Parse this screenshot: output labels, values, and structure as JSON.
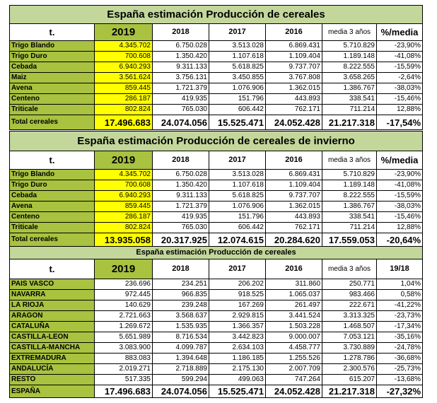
{
  "tables": [
    {
      "title": "España estimación Producción de cereales",
      "headers": [
        "t.",
        "2019",
        "2018",
        "2017",
        "2016",
        "media 3 años",
        "%/media"
      ],
      "rows": [
        [
          "Trigo Blando",
          "4.345.702",
          "6.750.028",
          "3.513.028",
          "6.869.431",
          "5.710.829",
          "-23,90%"
        ],
        [
          "Trigo Duro",
          "700.608",
          "1.350.420",
          "1.107.618",
          "1.109.404",
          "1.189.148",
          "-41,08%"
        ],
        [
          "Cebada",
          "6.940.293",
          "9.311.133",
          "5.618.825",
          "9.737.707",
          "8.222.555",
          "-15,59%"
        ],
        [
          "Maiz",
          "3.561.624",
          "3.756.131",
          "3.450.855",
          "3.767.808",
          "3.658.265",
          "-2,64%"
        ],
        [
          "Avena",
          "859.445",
          "1.721.379",
          "1.076.906",
          "1.362.015",
          "1.386.767",
          "-38,03%"
        ],
        [
          "Centeno",
          "286.187",
          "419.935",
          "151.796",
          "443.893",
          "338.541",
          "-15,46%"
        ],
        [
          "Triticale",
          "802.824",
          "765.030",
          "606.442",
          "762.171",
          "711.214",
          "12,88%"
        ]
      ],
      "total": [
        "Total cereales",
        "17.496.683",
        "24.074.056",
        "15.525.471",
        "24.052.428",
        "21.217.318",
        "-17,54%"
      ]
    },
    {
      "title": "España estimación Producción de cereales de invierno",
      "headers": [
        "t.",
        "2019",
        "2018",
        "2017",
        "2016",
        "media 3 años",
        "%/media"
      ],
      "rows": [
        [
          "Trigo Blando",
          "4.345.702",
          "6.750.028",
          "3.513.028",
          "6.869.431",
          "5.710.829",
          "-23,90%"
        ],
        [
          "Trigo Duro",
          "700.608",
          "1.350.420",
          "1.107.618",
          "1.109.404",
          "1.189.148",
          "-41,08%"
        ],
        [
          "Cebada",
          "6.940.293",
          "9.311.133",
          "5.618.825",
          "9.737.707",
          "8.222.555",
          "-15,59%"
        ],
        [
          "Avena",
          "859.445",
          "1.721.379",
          "1.076.906",
          "1.362.015",
          "1.386.767",
          "-38,03%"
        ],
        [
          "Centeno",
          "286.187",
          "419.935",
          "151.796",
          "443.893",
          "338.541",
          "-15,46%"
        ],
        [
          "Triticale",
          "802.824",
          "765.030",
          "606.442",
          "762.171",
          "711.214",
          "12,88%"
        ]
      ],
      "total": [
        "Total cereales",
        "13.935.058",
        "20.317.925",
        "12.074.615",
        "20.284.620",
        "17.559.053",
        "-20,64%"
      ]
    },
    {
      "title": "España estimación Producción de cereales",
      "headers": [
        "t.",
        "2019",
        "2018",
        "2017",
        "2016",
        "media 3 años",
        "19/18"
      ],
      "rows": [
        [
          "PAIS VASCO",
          "236.696",
          "234.251",
          "206.202",
          "311.860",
          "250.771",
          "1,04%"
        ],
        [
          "NAVARRA",
          "972.445",
          "966.835",
          "918.525",
          "1.065.037",
          "983.466",
          "0,58%"
        ],
        [
          "LA RIOJA",
          "140.629",
          "239.248",
          "167.269",
          "261.497",
          "222.671",
          "-41,22%"
        ],
        [
          "ARAGON",
          "2.721.663",
          "3.568.637",
          "2.929.815",
          "3.441.524",
          "3.313.325",
          "-23,73%"
        ],
        [
          "CATALUÑA",
          "1.269.672",
          "1.535.935",
          "1.366.357",
          "1.503.228",
          "1.468.507",
          "-17,34%"
        ],
        [
          "CASTILLA-LEON",
          "5.651.989",
          "8.716.534",
          "3.442.823",
          "9.000.007",
          "7.053.121",
          "-35,16%"
        ],
        [
          "CASTILLA-MANCHA",
          "3.083.900",
          "4.099.787",
          "2.634.103",
          "4.458.777",
          "3.730.889",
          "-24,78%"
        ],
        [
          "EXTREMADURA",
          "883.083",
          "1.394.648",
          "1.186.185",
          "1.255.526",
          "1.278.786",
          "-36,68%"
        ],
        [
          "ANDALUCÍA",
          "2.019.271",
          "2.718.889",
          "2.175.130",
          "2.007.709",
          "2.300.576",
          "-25,73%"
        ],
        [
          "RESTO",
          "517.335",
          "599.294",
          "499.063",
          "747.264",
          "615.207",
          "-13,68%"
        ]
      ],
      "total": [
        "ESPAÑA",
        "17.496.683",
        "24.074.056",
        "15.525.471",
        "24.052.428",
        "21.217.318",
        "-27,32%"
      ]
    }
  ]
}
